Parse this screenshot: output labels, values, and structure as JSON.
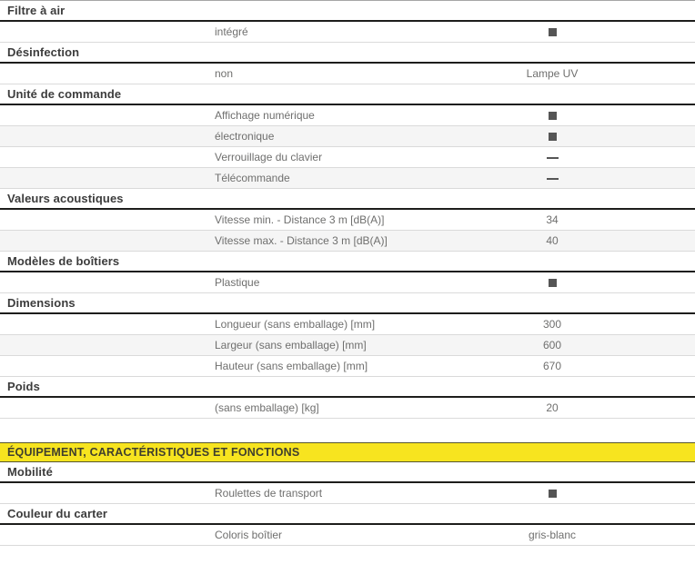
{
  "banner": {
    "label": "ÉQUIPEMENT, CARACTÉRISTIQUES ET FONCTIONS"
  },
  "colors": {
    "accent_yellow": "#f7e41f",
    "banner_text": "#3f3e2e",
    "banner_border": "#56562e",
    "section_title_text": "#3c3c3c",
    "row_text": "#6f6f6e",
    "row_alt_background": "#f5f5f5",
    "mark_color": "#555555",
    "header_rule": "#1d1d1b",
    "row_rule": "#dadada",
    "table_top_rule": "#a6a6a6"
  },
  "icons": {
    "yes_mark": "filled-square-icon",
    "no_mark": "dash-icon"
  },
  "sections_top": [
    {
      "title": "Filtre à air",
      "rows": [
        {
          "label": "intégré",
          "type": "square",
          "value": ""
        }
      ]
    },
    {
      "title": "Désinfection",
      "rows": [
        {
          "label": "non",
          "type": "text",
          "value": "Lampe UV"
        }
      ]
    },
    {
      "title": "Unité de commande",
      "rows": [
        {
          "label": "Affichage numérique",
          "type": "square",
          "value": ""
        },
        {
          "label": "électronique",
          "type": "square",
          "value": ""
        },
        {
          "label": "Verrouillage du clavier",
          "type": "dash",
          "value": ""
        },
        {
          "label": "Télécommande",
          "type": "dash",
          "value": ""
        }
      ]
    },
    {
      "title": "Valeurs acoustiques",
      "rows": [
        {
          "label": "Vitesse min. - Distance 3 m [dB(A)]",
          "type": "text",
          "value": "34"
        },
        {
          "label": "Vitesse max. - Distance 3 m [dB(A)]",
          "type": "text",
          "value": "40"
        }
      ]
    },
    {
      "title": "Modèles de boîtiers",
      "rows": [
        {
          "label": "Plastique",
          "type": "square",
          "value": ""
        }
      ]
    },
    {
      "title": "Dimensions",
      "rows": [
        {
          "label": "Longueur (sans emballage) [mm]",
          "type": "text",
          "value": "300"
        },
        {
          "label": "Largeur (sans emballage) [mm]",
          "type": "text",
          "value": "600"
        },
        {
          "label": "Hauteur (sans emballage) [mm]",
          "type": "text",
          "value": "670"
        }
      ]
    },
    {
      "title": "Poids",
      "rows": [
        {
          "label": "(sans emballage) [kg]",
          "type": "text",
          "value": "20"
        }
      ]
    }
  ],
  "sections_bottom": [
    {
      "title": "Mobilité",
      "rows": [
        {
          "label": "Roulettes de transport",
          "type": "square",
          "value": ""
        }
      ]
    },
    {
      "title": "Couleur du carter",
      "rows": [
        {
          "label": "Coloris boîtier",
          "type": "text",
          "value": "gris-blanc"
        }
      ]
    }
  ]
}
